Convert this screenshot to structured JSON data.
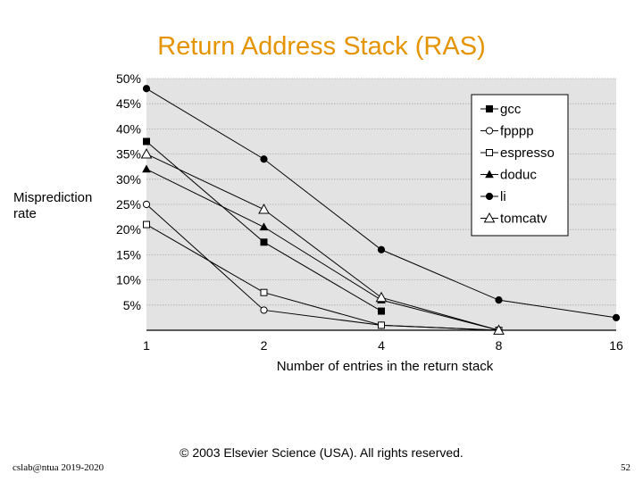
{
  "slide": {
    "title": "Return Address Stack (RAS)",
    "copyright": "© 2003 Elsevier Science (USA). All rights reserved.",
    "footer_left": "cslab@ntua 2019-2020",
    "page_number": "52"
  },
  "chart_data": {
    "type": "line",
    "ylabel": "Misprediction rate",
    "xlabel": "Number of entries in the return stack",
    "x": [
      1,
      2,
      4,
      8,
      16
    ],
    "x_tick_labels": [
      "1",
      "2",
      "4",
      "8",
      "16"
    ],
    "x_scale": "log2",
    "ylim": [
      0,
      50
    ],
    "y_ticks": [
      5,
      10,
      15,
      20,
      25,
      30,
      35,
      40,
      45,
      50
    ],
    "y_tick_labels": [
      "5%",
      "10%",
      "15%",
      "20%",
      "25%",
      "30%",
      "35%",
      "40%",
      "45%",
      "50%"
    ],
    "grid": "horizontal",
    "legend_position": "top-right",
    "colors": {
      "plot_background": "#e3e3e3",
      "line": "#000000",
      "title": "#e59400"
    },
    "series": [
      {
        "name": "gcc",
        "marker": "square-filled",
        "x": [
          1,
          2,
          4
        ],
        "values": [
          37.5,
          17.5,
          3.8
        ]
      },
      {
        "name": "fpppp",
        "marker": "circle-open",
        "x": [
          1,
          2,
          4,
          8
        ],
        "values": [
          25,
          4,
          1,
          0
        ]
      },
      {
        "name": "espresso",
        "marker": "square-open",
        "x": [
          1,
          2,
          4,
          8
        ],
        "values": [
          21,
          7.5,
          1,
          0
        ]
      },
      {
        "name": "doduc",
        "marker": "triangle-filled",
        "x": [
          1,
          2,
          4,
          8
        ],
        "values": [
          32,
          20.5,
          6,
          0
        ]
      },
      {
        "name": "li",
        "marker": "circle-filled",
        "x": [
          1,
          2,
          4,
          8,
          16
        ],
        "values": [
          48,
          34,
          16,
          6,
          2.5
        ]
      },
      {
        "name": "tomcatv",
        "marker": "triangle-open",
        "x": [
          1,
          2,
          4,
          8
        ],
        "values": [
          35,
          24,
          6.5,
          0
        ]
      }
    ]
  }
}
